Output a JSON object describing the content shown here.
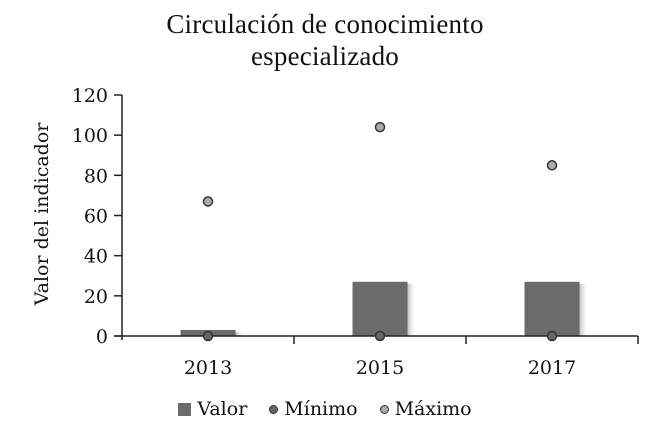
{
  "chart_data": {
    "type": "bar",
    "title": "Circulación de conocimiento especializado",
    "title_lines": [
      "Circulación de conocimiento",
      "especializado"
    ],
    "xlabel": "",
    "ylabel": "Valor del indicador",
    "ylim": [
      0,
      120
    ],
    "yticks": [
      0,
      20,
      40,
      60,
      80,
      100,
      120
    ],
    "grid": false,
    "legend_position": "bottom",
    "categories": [
      "2013",
      "2015",
      "2017"
    ],
    "series": [
      {
        "name": "Valor",
        "kind": "bar",
        "color": "#6b6b6b",
        "values": [
          3,
          27,
          27
        ]
      },
      {
        "name": "Mínimo",
        "kind": "marker",
        "color": "#666666",
        "values": [
          0,
          0,
          0
        ]
      },
      {
        "name": "Máximo",
        "kind": "marker",
        "color": "#aaaaaa",
        "values": [
          67,
          104,
          85
        ]
      }
    ]
  },
  "legend": {
    "items": [
      {
        "label": "Valor",
        "color": "#6b6b6b",
        "shape": "square"
      },
      {
        "label": "Mínimo",
        "color": "#666666",
        "shape": "circle"
      },
      {
        "label": "Máximo",
        "color": "#aaaaaa",
        "shape": "circle"
      }
    ]
  }
}
